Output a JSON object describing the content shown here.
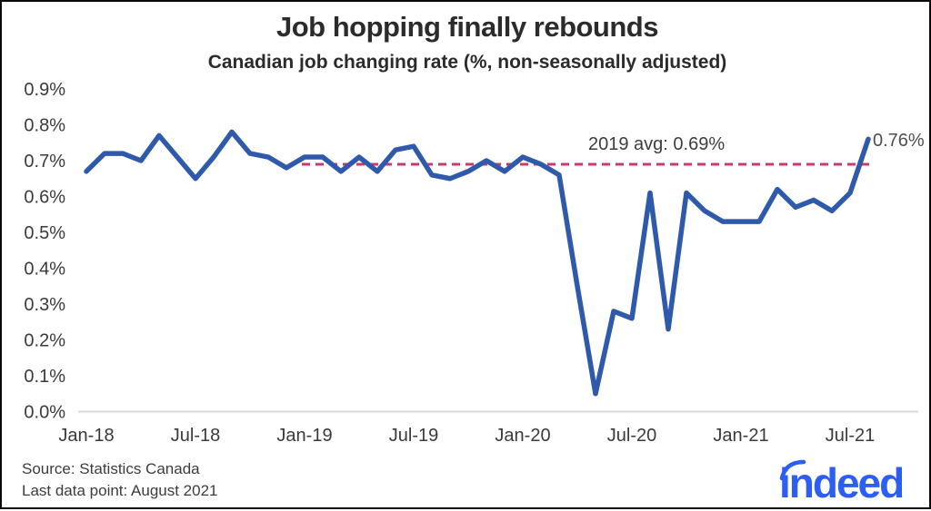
{
  "header": {
    "title": "Job hopping finally rebounds",
    "subtitle": "Canadian job changing rate (%, non-seasonally adjusted)"
  },
  "chart_data": {
    "type": "line",
    "title": "Job hopping finally rebounds",
    "subtitle": "Canadian job changing rate (%, non-seasonally adjusted)",
    "unit": "%",
    "ylim": [
      0.0,
      0.9
    ],
    "grid": "off",
    "y_ticks": [
      {
        "value": 0.0,
        "label": "0.0%"
      },
      {
        "value": 0.1,
        "label": "0.1%"
      },
      {
        "value": 0.2,
        "label": "0.2%"
      },
      {
        "value": 0.3,
        "label": "0.3%"
      },
      {
        "value": 0.4,
        "label": "0.4%"
      },
      {
        "value": 0.5,
        "label": "0.5%"
      },
      {
        "value": 0.6,
        "label": "0.6%"
      },
      {
        "value": 0.7,
        "label": "0.7%"
      },
      {
        "value": 0.8,
        "label": "0.8%"
      },
      {
        "value": 0.9,
        "label": "0.9%"
      }
    ],
    "x_ticks": [
      {
        "month_index": 0,
        "label": "Jan-18"
      },
      {
        "month_index": 6,
        "label": "Jul-18"
      },
      {
        "month_index": 12,
        "label": "Jan-19"
      },
      {
        "month_index": 18,
        "label": "Jul-19"
      },
      {
        "month_index": 24,
        "label": "Jan-20"
      },
      {
        "month_index": 30,
        "label": "Jul-20"
      },
      {
        "month_index": 36,
        "label": "Jan-21"
      },
      {
        "month_index": 42,
        "label": "Jul-21"
      }
    ],
    "series": [
      {
        "name": "Canadian job changing rate",
        "color": "#2f5aac",
        "months": [
          "Jan-18",
          "Feb-18",
          "Mar-18",
          "Apr-18",
          "May-18",
          "Jun-18",
          "Jul-18",
          "Aug-18",
          "Sep-18",
          "Oct-18",
          "Nov-18",
          "Dec-18",
          "Jan-19",
          "Feb-19",
          "Mar-19",
          "Apr-19",
          "May-19",
          "Jun-19",
          "Jul-19",
          "Aug-19",
          "Sep-19",
          "Oct-19",
          "Nov-19",
          "Dec-19",
          "Jan-20",
          "Feb-20",
          "Mar-20",
          "Apr-20",
          "May-20",
          "Jun-20",
          "Jul-20",
          "Aug-20",
          "Sep-20",
          "Oct-20",
          "Nov-20",
          "Dec-20",
          "Jan-21",
          "Feb-21",
          "Mar-21",
          "Apr-21",
          "May-21",
          "Jun-21",
          "Jul-21",
          "Aug-21"
        ],
        "values": [
          0.67,
          0.72,
          0.72,
          0.7,
          0.77,
          0.71,
          0.65,
          0.71,
          0.78,
          0.72,
          0.71,
          0.68,
          0.71,
          0.71,
          0.67,
          0.71,
          0.67,
          0.73,
          0.74,
          0.66,
          0.65,
          0.67,
          0.7,
          0.67,
          0.71,
          0.69,
          0.66,
          0.35,
          0.05,
          0.28,
          0.26,
          0.61,
          0.23,
          0.61,
          0.56,
          0.53,
          0.53,
          0.53,
          0.62,
          0.57,
          0.59,
          0.56,
          0.61,
          0.76
        ]
      }
    ],
    "reference_line": {
      "value": 0.69,
      "label": "2019 avg: 0.69%",
      "color": "#cb3a6e",
      "style": "dashed"
    },
    "end_point_label": {
      "label": "0.76%",
      "month": "Aug-21",
      "value": 0.76
    }
  },
  "footer": {
    "source": "Source: Statistics Canada",
    "last_data_point": "Last data point: August 2021"
  },
  "logo": {
    "text": "indeed",
    "color": "#2c5ef2"
  },
  "colors": {
    "line_blue": "#2f5aac",
    "dashed_pink": "#cb3a6e",
    "title_text": "#2b2b2b",
    "tick_text": "#3a3a3a",
    "baseline_gray": "#d8d8d8",
    "logo_blue": "#2c5ef2"
  }
}
